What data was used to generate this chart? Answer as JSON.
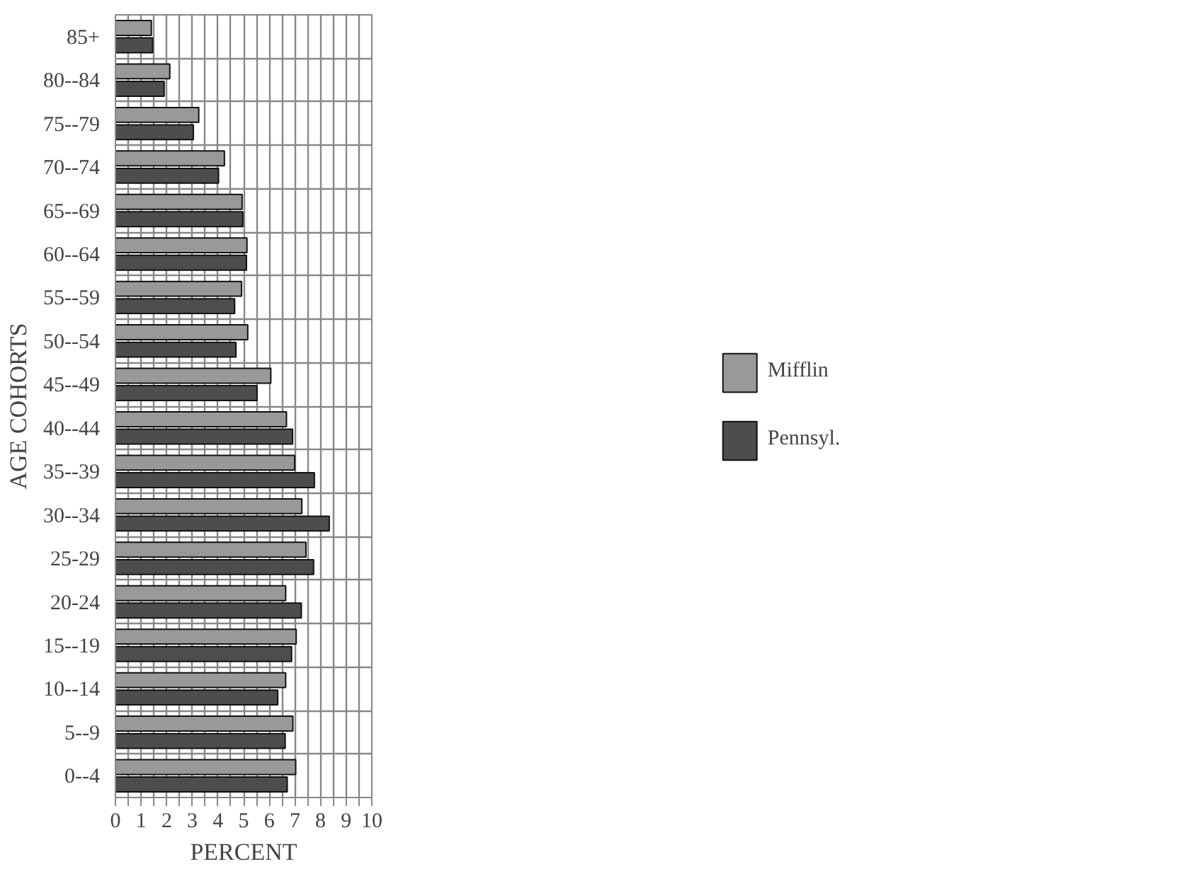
{
  "chart_data": {
    "type": "bar",
    "orientation": "horizontal",
    "xlabel": "PERCENT",
    "ylabel": "AGE COHORTS",
    "categories": [
      "85+",
      "80--84",
      "75--79",
      "70--74",
      "65--69",
      "60--64",
      "55--59",
      "50--54",
      "45--49",
      "40--44",
      "35--39",
      "30--34",
      "25-29",
      "20-24",
      "15--19",
      "10--14",
      "5--9",
      "0--4"
    ],
    "series": [
      {
        "name": "Mifflin",
        "color": "#999999",
        "values": [
          1.4,
          2.12,
          3.25,
          4.25,
          4.94,
          5.13,
          4.92,
          5.16,
          6.06,
          6.67,
          6.99,
          7.27,
          7.43,
          6.64,
          7.05,
          6.64,
          6.92,
          7.03
        ]
      },
      {
        "name": "Pennsyl.",
        "color": "#4d4d4d",
        "values": [
          1.45,
          1.9,
          3.04,
          4.02,
          4.97,
          5.11,
          4.65,
          4.7,
          5.52,
          6.91,
          7.76,
          8.34,
          7.73,
          7.25,
          6.87,
          6.33,
          6.62,
          6.7
        ]
      }
    ],
    "xlim": [
      0,
      10
    ],
    "xticks": [
      0,
      {
        "value": 0.5,
        "label": null
      },
      1,
      {
        "value": 1.5,
        "label": null
      },
      2,
      {
        "value": 2.5,
        "label": null
      },
      3,
      {
        "value": 3.5,
        "label": null
      },
      4,
      {
        "value": 4.5,
        "label": null
      },
      5,
      {
        "value": 5.5,
        "label": null
      },
      6,
      {
        "value": 6.5,
        "label": null
      },
      7,
      {
        "value": 7.5,
        "label": null
      },
      8,
      {
        "value": 8.5,
        "label": null
      },
      9,
      {
        "value": 9.5,
        "label": null
      },
      10
    ],
    "grid": true,
    "legend": "right"
  }
}
